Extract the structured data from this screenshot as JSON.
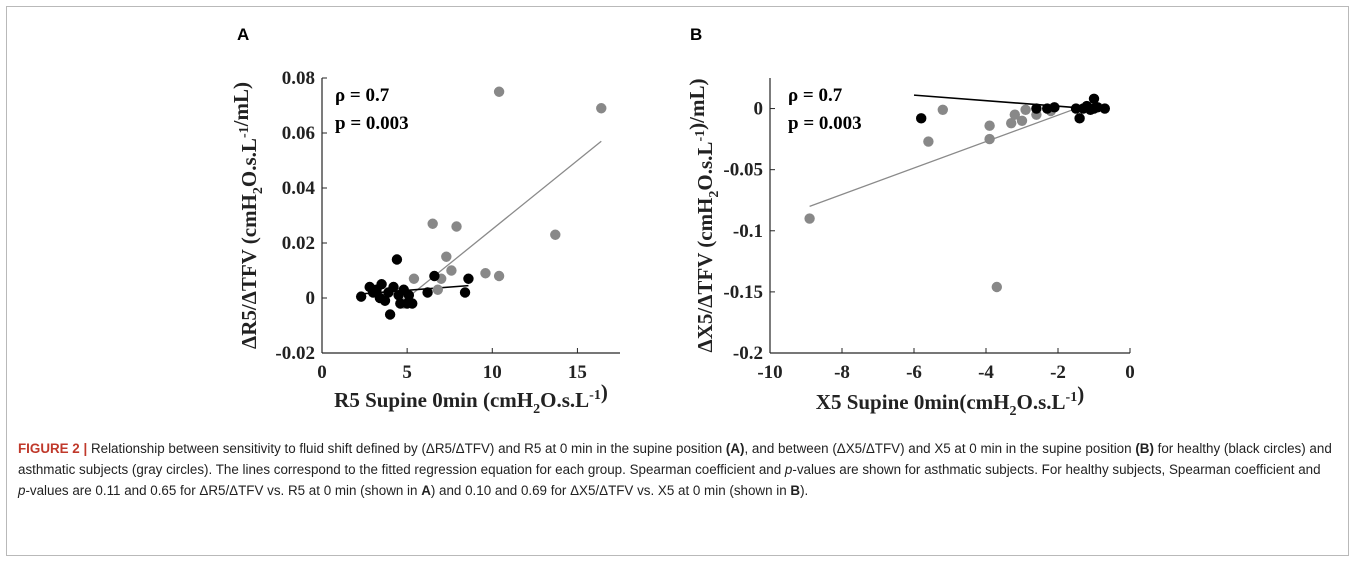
{
  "figure": {
    "caption_label": "FIGURE 2 |",
    "caption_segments": [
      {
        "text": " Relationship between sensitivity to fluid shift defined by (ΔR5/ΔTFV) and R5 at 0 min in the supine position ",
        "style": "normal"
      },
      {
        "text": "(A)",
        "style": "bold"
      },
      {
        "text": ", and between (ΔX5/ΔTFV) and X5 at 0 min in the supine position ",
        "style": "normal"
      },
      {
        "text": "(B)",
        "style": "bold"
      },
      {
        "text": " for healthy (black circles) and asthmatic subjects (gray circles). The lines correspond to the fitted regression equation for each group. Spearman coefficient and ",
        "style": "normal"
      },
      {
        "text": "p",
        "style": "italic"
      },
      {
        "text": "-values are shown for asthmatic subjects. For healthy subjects, Spearman coefficient and ",
        "style": "normal"
      },
      {
        "text": "p",
        "style": "italic"
      },
      {
        "text": "-values are 0.11 and 0.65 for ΔR5/ΔTFV vs. R5 at 0 min (shown in ",
        "style": "normal"
      },
      {
        "text": "A",
        "style": "bold"
      },
      {
        "text": ") and 0.10 and 0.69 for ΔX5/ΔTFV vs. X5 at 0 min (shown in ",
        "style": "normal"
      },
      {
        "text": "B",
        "style": "bold"
      },
      {
        "text": ").",
        "style": "normal"
      }
    ]
  },
  "colors": {
    "healthy": "#000000",
    "asthma": "#888888",
    "asthma_line": "#8a8a8a",
    "healthy_line": "#000000"
  },
  "chart_data": [
    {
      "type": "scatter",
      "panel_label": "A",
      "xlabel": "R5 Supine 0min (cmH2O.s.L-1)",
      "ylabel": "ΔR5/ΔTFV (cmH2O.s.L-1/mL)",
      "xlim": [
        0,
        17.5
      ],
      "ylim": [
        -0.02,
        0.08
      ],
      "x_ticks": [
        0,
        5,
        10,
        15
      ],
      "y_ticks": [
        -0.02,
        0,
        0.02,
        0.04,
        0.06,
        0.08
      ],
      "x_tick_labels": [
        "0",
        "5",
        "10",
        "15"
      ],
      "y_tick_labels": [
        "-0.02",
        "0",
        "0.02",
        "0.04",
        "0.06",
        "0.08"
      ],
      "annotations": [
        "ρ = 0.7",
        "p = 0.003"
      ],
      "series": [
        {
          "group": "healthy",
          "points": [
            [
              2.3,
              0.0005
            ],
            [
              2.8,
              0.004
            ],
            [
              3.0,
              0.002
            ],
            [
              3.2,
              0.003
            ],
            [
              3.4,
              0.0
            ],
            [
              3.5,
              0.005
            ],
            [
              3.7,
              -0.001
            ],
            [
              3.9,
              0.002
            ],
            [
              4.0,
              -0.006
            ],
            [
              4.2,
              0.004
            ],
            [
              4.4,
              0.014
            ],
            [
              4.5,
              0.001
            ],
            [
              4.8,
              0.003
            ],
            [
              5.0,
              -0.002
            ],
            [
              5.1,
              0.001
            ],
            [
              5.3,
              -0.002
            ],
            [
              6.2,
              0.002
            ],
            [
              6.6,
              0.008
            ],
            [
              8.4,
              0.002
            ],
            [
              8.6,
              0.007
            ],
            [
              4.6,
              -0.002
            ]
          ],
          "fit": [
            [
              2.3,
              0.0015
            ],
            [
              8.6,
              0.0045
            ]
          ]
        },
        {
          "group": "asthma",
          "points": [
            [
              4.8,
              -0.002
            ],
            [
              5.4,
              0.007
            ],
            [
              6.5,
              0.027
            ],
            [
              6.8,
              0.003
            ],
            [
              7.0,
              0.007
            ],
            [
              7.3,
              0.015
            ],
            [
              7.6,
              0.01
            ],
            [
              7.9,
              0.026
            ],
            [
              9.6,
              0.009
            ],
            [
              10.4,
              0.008
            ],
            [
              10.4,
              0.075
            ],
            [
              13.7,
              0.023
            ],
            [
              16.4,
              0.069
            ]
          ],
          "fit": [
            [
              4.8,
              -0.001
            ],
            [
              16.4,
              0.057
            ]
          ]
        }
      ]
    },
    {
      "type": "scatter",
      "panel_label": "B",
      "xlabel": "X5 Supine 0min(cmH2O.s.L-1)",
      "ylabel": "ΔX5/ΔTFV (cmH2O.s.L-1)/mL)",
      "xlim": [
        -10,
        0
      ],
      "ylim": [
        -0.2,
        0.025
      ],
      "x_ticks": [
        -10,
        -8,
        -6,
        -4,
        -2,
        0
      ],
      "y_ticks": [
        -0.2,
        -0.15,
        -0.1,
        -0.05,
        0
      ],
      "x_tick_labels": [
        "-10",
        "-8",
        "-6",
        "-4",
        "-2",
        "0"
      ],
      "y_tick_labels": [
        "-0.2",
        "-0.15",
        "-0.1",
        "-0.05",
        "0"
      ],
      "annotations": [
        "ρ = 0.7",
        "p = 0.003"
      ],
      "series": [
        {
          "group": "healthy",
          "points": [
            [
              -5.8,
              -0.008
            ],
            [
              -2.6,
              0.0
            ],
            [
              -2.3,
              0.0
            ],
            [
              -2.1,
              0.001
            ],
            [
              -1.5,
              0.0
            ],
            [
              -1.4,
              -0.008
            ],
            [
              -1.3,
              0.0
            ],
            [
              -1.2,
              0.002
            ],
            [
              -1.1,
              -0.001
            ],
            [
              -1.0,
              0.0
            ],
            [
              -0.9,
              0.001
            ],
            [
              -1.0,
              0.008
            ],
            [
              -0.7,
              0.0
            ]
          ],
          "fit": [
            [
              -6.0,
              0.011
            ],
            [
              -0.7,
              -0.001
            ]
          ]
        },
        {
          "group": "asthma",
          "points": [
            [
              -8.9,
              -0.09
            ],
            [
              -5.6,
              -0.027
            ],
            [
              -5.2,
              -0.001
            ],
            [
              -3.9,
              -0.025
            ],
            [
              -3.9,
              -0.014
            ],
            [
              -3.7,
              -0.146
            ],
            [
              -3.3,
              -0.012
            ],
            [
              -3.2,
              -0.005
            ],
            [
              -3.0,
              -0.01
            ],
            [
              -2.9,
              -0.001
            ],
            [
              -2.6,
              -0.005
            ],
            [
              -2.2,
              -0.002
            ]
          ],
          "fit": [
            [
              -8.9,
              -0.08
            ],
            [
              -1.5,
              0.0
            ]
          ]
        }
      ]
    }
  ]
}
